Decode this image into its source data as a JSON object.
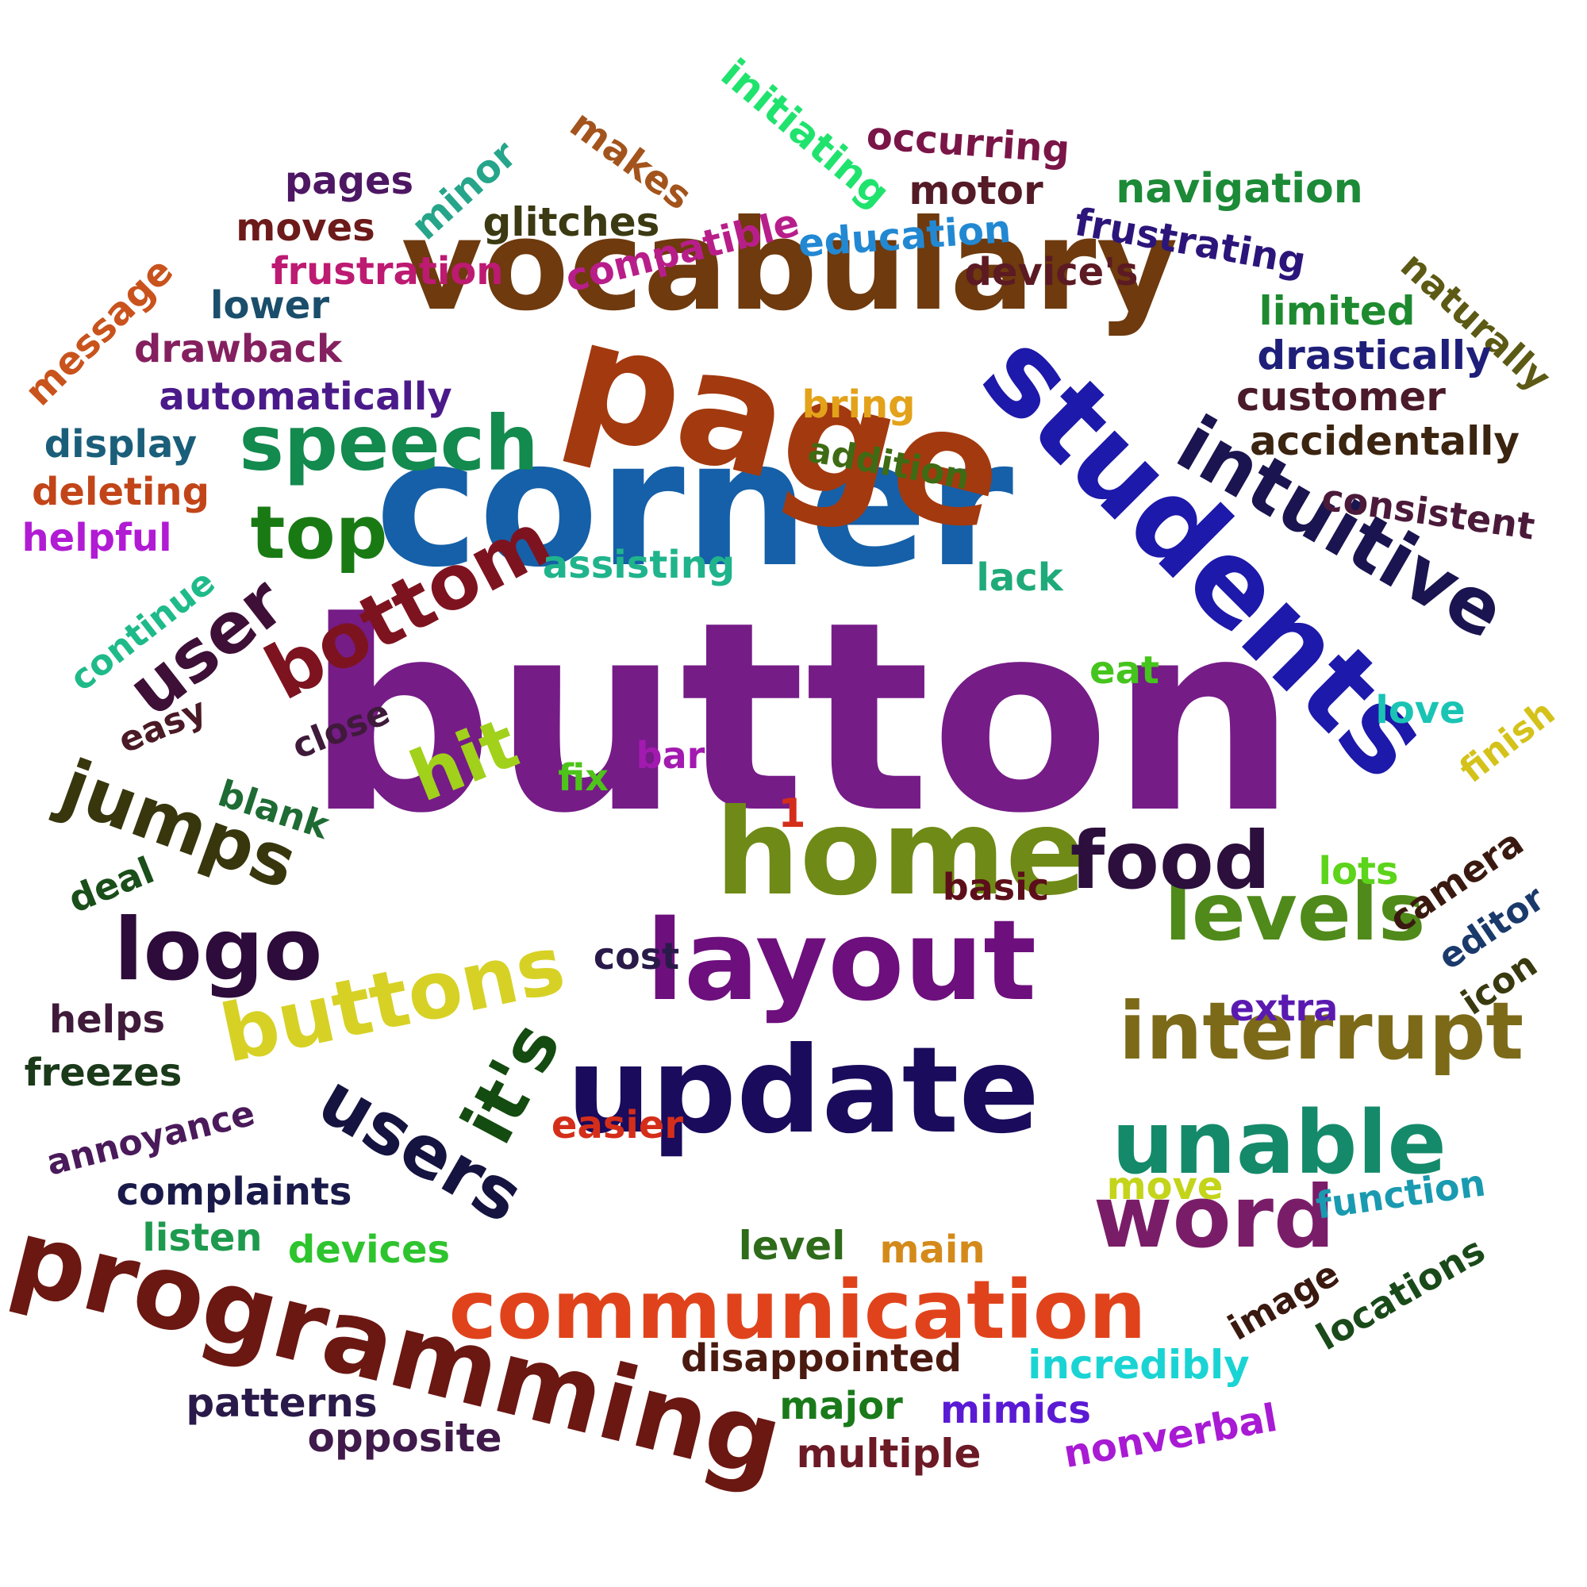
{
  "words": [
    {
      "text": "button",
      "color": "#751c87"
    },
    {
      "text": "corner",
      "color": "#1560a8"
    },
    {
      "text": "vocabulary",
      "color": "#6e3a0e"
    },
    {
      "text": "page",
      "color": "#a3390f"
    },
    {
      "text": "students",
      "color": "#1d19aa"
    },
    {
      "text": "home",
      "color": "#6f8a16"
    },
    {
      "text": "layout",
      "color": "#6d0f7d"
    },
    {
      "text": "update",
      "color": "#1a0b5c"
    },
    {
      "text": "programming",
      "color": "#6b1712"
    },
    {
      "text": "communication",
      "color": "#e0431b"
    },
    {
      "text": "intuitive",
      "color": "#1a1550"
    },
    {
      "text": "levels",
      "color": "#4f8a1a"
    },
    {
      "text": "interrupt",
      "color": "#7c6a19"
    },
    {
      "text": "unable",
      "color": "#148a6a"
    },
    {
      "text": "word",
      "color": "#7a1d69"
    },
    {
      "text": "buttons",
      "color": "#d7d126"
    },
    {
      "text": "logo",
      "color": "#2d0b3a"
    },
    {
      "text": "speech",
      "color": "#138a4e"
    },
    {
      "text": "food",
      "color": "#2c0f3c"
    },
    {
      "text": "bottom",
      "color": "#7e1320"
    },
    {
      "text": "jumps",
      "color": "#38360d"
    },
    {
      "text": "users",
      "color": "#15133f"
    },
    {
      "text": "it's",
      "color": "#144b10"
    },
    {
      "text": "user",
      "color": "#3e0f37"
    },
    {
      "text": "top",
      "color": "#197a14"
    },
    {
      "text": "hit",
      "color": "#a1d11a"
    },
    {
      "text": "initiating",
      "color": "#20e36e"
    },
    {
      "text": "occurring",
      "color": "#7a1547"
    },
    {
      "text": "makes",
      "color": "#a3541c"
    },
    {
      "text": "minor",
      "color": "#26a58a"
    },
    {
      "text": "pages",
      "color": "#4d1763"
    },
    {
      "text": "motor",
      "color": "#541a26"
    },
    {
      "text": "navigation",
      "color": "#1c8a37"
    },
    {
      "text": "glitches",
      "color": "#3b3a12"
    },
    {
      "text": "moves",
      "color": "#6d1a1a"
    },
    {
      "text": "compatible",
      "color": "#b81e8a"
    },
    {
      "text": "education",
      "color": "#2288d2"
    },
    {
      "text": "frustrating",
      "color": "#2c157a"
    },
    {
      "text": "frustration",
      "color": "#bd1a72"
    },
    {
      "text": "device's",
      "color": "#5c1a23"
    },
    {
      "text": "naturally",
      "color": "#5c5a14"
    },
    {
      "text": "message",
      "color": "#c9531c"
    },
    {
      "text": "lower",
      "color": "#1a4e6b"
    },
    {
      "text": "limited",
      "color": "#1e8a2f"
    },
    {
      "text": "drawback",
      "color": "#84205f"
    },
    {
      "text": "drastically",
      "color": "#1f1f7a"
    },
    {
      "text": "automatically",
      "color": "#4b1a8a"
    },
    {
      "text": "customer",
      "color": "#4a1a2a"
    },
    {
      "text": "bring",
      "color": "#e3a21a"
    },
    {
      "text": "display",
      "color": "#1a5e7a"
    },
    {
      "text": "accidentally",
      "color": "#3b2410"
    },
    {
      "text": "addition",
      "color": "#3f6b14"
    },
    {
      "text": "deleting",
      "color": "#c24519"
    },
    {
      "text": "consistent",
      "color": "#4b1a3a"
    },
    {
      "text": "helpful",
      "color": "#b11bd4"
    },
    {
      "text": "continue",
      "color": "#1fba8a"
    },
    {
      "text": "assisting",
      "color": "#20b48c"
    },
    {
      "text": "lack",
      "color": "#1faa7a"
    },
    {
      "text": "eat",
      "color": "#46c41e"
    },
    {
      "text": "love",
      "color": "#1ac4b4"
    },
    {
      "text": "finish",
      "color": "#d4c21a"
    },
    {
      "text": "easy",
      "color": "#4a1a26"
    },
    {
      "text": "close",
      "color": "#3f1a3a"
    },
    {
      "text": "bar",
      "color": "#a31ab0"
    },
    {
      "text": "fix",
      "color": "#4ec41a"
    },
    {
      "text": "blank",
      "color": "#1e6b34"
    },
    {
      "text": "1",
      "color": "#d42e1a"
    },
    {
      "text": "lots",
      "color": "#5cd41a"
    },
    {
      "text": "camera",
      "color": "#3a1a10"
    },
    {
      "text": "basic",
      "color": "#5c0f1a"
    },
    {
      "text": "deal",
      "color": "#1a4e1a"
    },
    {
      "text": "editor",
      "color": "#1a3a6b"
    },
    {
      "text": "cost",
      "color": "#2a1a4a"
    },
    {
      "text": "icon",
      "color": "#3a3a10"
    },
    {
      "text": "extra",
      "color": "#5a1ab0"
    },
    {
      "text": "helps",
      "color": "#3f1a3a"
    },
    {
      "text": "freezes",
      "color": "#1a3a1a"
    },
    {
      "text": "annoyance",
      "color": "#4a1a5a"
    },
    {
      "text": "easier",
      "color": "#d42e1a"
    },
    {
      "text": "move",
      "color": "#c4d41a"
    },
    {
      "text": "function",
      "color": "#1a9ab0"
    },
    {
      "text": "complaints",
      "color": "#1a1a4a"
    },
    {
      "text": "listen",
      "color": "#1e9a4e"
    },
    {
      "text": "devices",
      "color": "#2ec42e"
    },
    {
      "text": "level",
      "color": "#2e6b1a"
    },
    {
      "text": "main",
      "color": "#d48a1a"
    },
    {
      "text": "image",
      "color": "#3a1a10"
    },
    {
      "text": "locations",
      "color": "#1a4a1a"
    },
    {
      "text": "disappointed",
      "color": "#4a1a10"
    },
    {
      "text": "incredibly",
      "color": "#1ad4d4"
    },
    {
      "text": "patterns",
      "color": "#2a1a4a"
    },
    {
      "text": "major",
      "color": "#1a7a1a"
    },
    {
      "text": "mimics",
      "color": "#5a1ad4"
    },
    {
      "text": "nonverbal",
      "color": "#a81ad4"
    },
    {
      "text": "opposite",
      "color": "#3f1a4a"
    },
    {
      "text": "multiple",
      "color": "#6b1a26"
    }
  ]
}
